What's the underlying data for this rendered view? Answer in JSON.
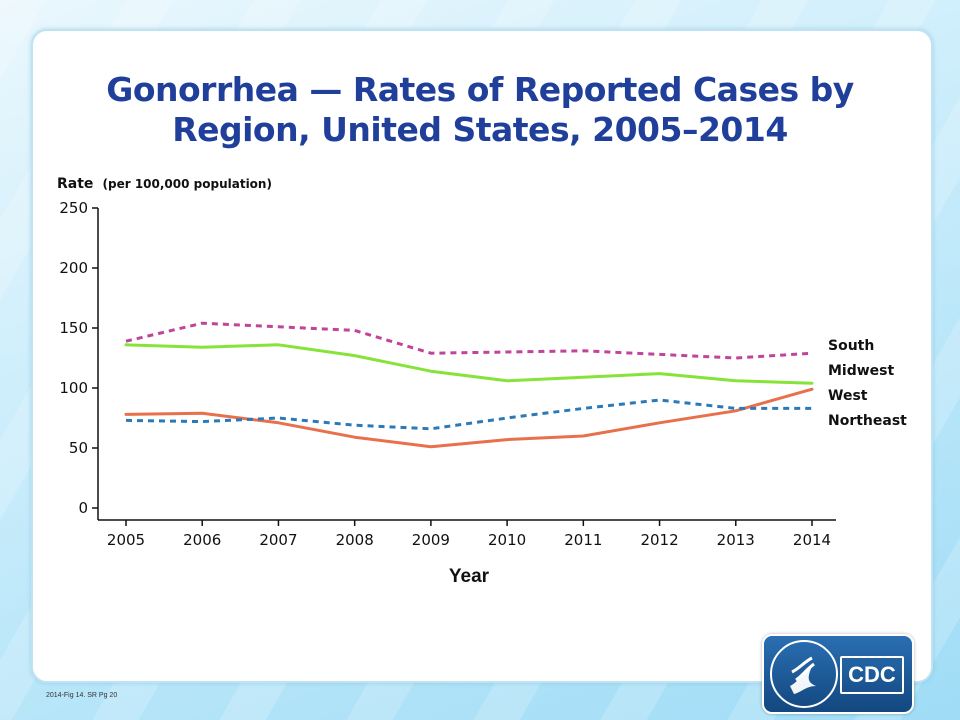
{
  "title_line1": "Gonorrhea — Rates of Reported Cases by",
  "title_line2": "Region, United States, 2005–2014",
  "footnote": "2014-Fig 14. SR Pg 20",
  "logo": {
    "text": "CDC",
    "seal_icon": "hhs-seal-icon"
  },
  "colors": {
    "title": "#1f3f9a",
    "South": "#c0449a",
    "Midwest": "#86e33a",
    "West": "#e8704a",
    "Northeast": "#2b7ab8"
  },
  "chart_data": {
    "type": "line",
    "title": "Gonorrhea — Rates of Reported Cases by Region, United States, 2005–2014",
    "ylabel_main": "Rate",
    "ylabel_sub": "(per 100,000 population)",
    "xlabel": "Year",
    "x": [
      "2005",
      "2006",
      "2007",
      "2008",
      "2009",
      "2010",
      "2011",
      "2012",
      "2013",
      "2014"
    ],
    "yticks": [
      0,
      50,
      100,
      150,
      200,
      250
    ],
    "ylim": [
      0,
      250
    ],
    "grid": false,
    "legend_placement": "right",
    "series": [
      {
        "name": "South",
        "style": "dashed",
        "values": [
          139,
          154,
          151,
          148,
          129,
          130,
          131,
          128,
          125,
          129
        ]
      },
      {
        "name": "Midwest",
        "style": "solid",
        "values": [
          136,
          134,
          136,
          127,
          114,
          106,
          109,
          112,
          106,
          104
        ]
      },
      {
        "name": "West",
        "style": "solid",
        "values": [
          78,
          79,
          71,
          59,
          51,
          57,
          60,
          71,
          81,
          99
        ]
      },
      {
        "name": "Northeast",
        "style": "dashed",
        "values": [
          73,
          72,
          75,
          69,
          66,
          75,
          83,
          90,
          83,
          83
        ]
      }
    ],
    "legend": [
      "South",
      "Midwest",
      "West",
      "Northeast"
    ]
  }
}
